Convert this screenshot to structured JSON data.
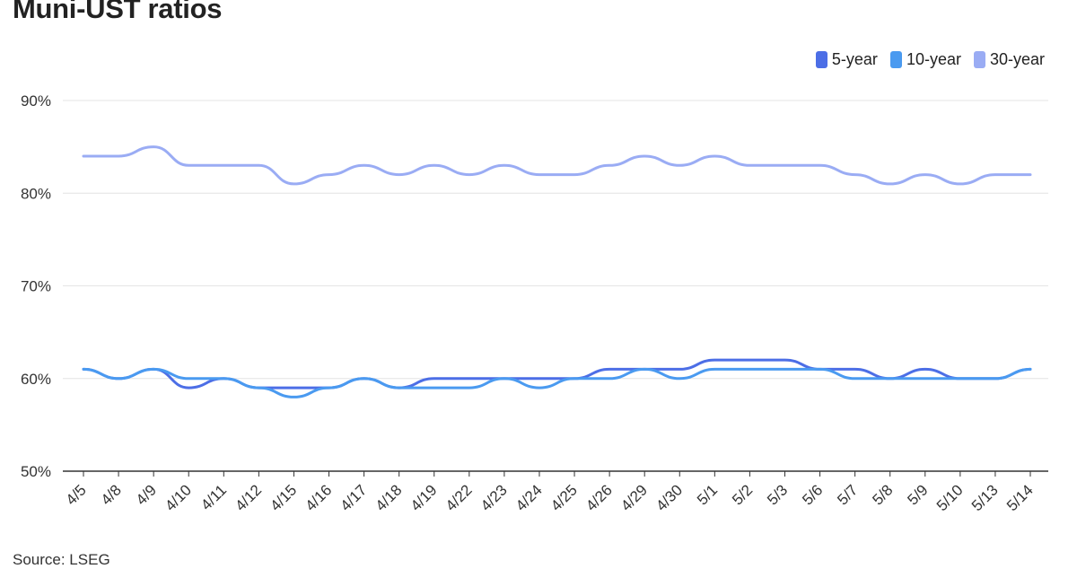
{
  "chart_data": {
    "type": "line",
    "title": "Muni-UST ratios",
    "source": "Source: LSEG",
    "categories": [
      "4/5",
      "4/8",
      "4/9",
      "4/10",
      "4/11",
      "4/12",
      "4/15",
      "4/16",
      "4/17",
      "4/18",
      "4/19",
      "4/22",
      "4/23",
      "4/24",
      "4/25",
      "4/26",
      "4/29",
      "4/30",
      "5/1",
      "5/2",
      "5/3",
      "5/6",
      "5/7",
      "5/8",
      "5/9",
      "5/10",
      "5/13",
      "5/14"
    ],
    "series": [
      {
        "name": "5-year",
        "color": "#4c6ee6",
        "values": [
          61,
          60,
          61,
          59,
          60,
          59,
          59,
          59,
          60,
          59,
          60,
          60,
          60,
          60,
          60,
          61,
          61,
          61,
          62,
          62,
          62,
          61,
          61,
          60,
          61,
          60,
          60,
          61
        ]
      },
      {
        "name": "10-year",
        "color": "#4a9af0",
        "values": [
          61,
          60,
          61,
          60,
          60,
          59,
          58,
          59,
          60,
          59,
          59,
          59,
          60,
          59,
          60,
          60,
          61,
          60,
          61,
          61,
          61,
          61,
          60,
          60,
          60,
          60,
          60,
          61
        ]
      },
      {
        "name": "30-year",
        "color": "#9aacf4",
        "values": [
          84,
          84,
          85,
          83,
          83,
          83,
          81,
          82,
          83,
          82,
          83,
          82,
          83,
          82,
          82,
          83,
          84,
          83,
          84,
          83,
          83,
          83,
          82,
          81,
          82,
          81,
          82,
          82
        ]
      }
    ],
    "yticks": [
      "50%",
      "60%",
      "70%",
      "80%",
      "90%"
    ],
    "ylim": [
      50,
      90
    ],
    "grid": true,
    "legend_position": "top-right"
  }
}
